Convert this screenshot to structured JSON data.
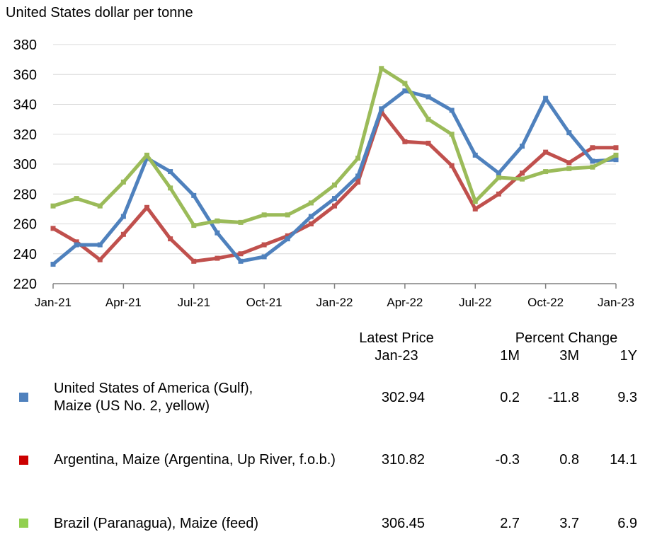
{
  "chart_data": {
    "type": "line",
    "ylabel": "United States dollar per tonne",
    "ylim": [
      220,
      380
    ],
    "yticks": [
      220,
      240,
      260,
      280,
      300,
      320,
      340,
      360,
      380
    ],
    "grid": true,
    "x": [
      "Jan-21",
      "Feb-21",
      "Mar-21",
      "Apr-21",
      "May-21",
      "Jun-21",
      "Jul-21",
      "Aug-21",
      "Sep-21",
      "Oct-21",
      "Nov-21",
      "Dec-21",
      "Jan-22",
      "Feb-22",
      "Mar-22",
      "Apr-22",
      "May-22",
      "Jun-22",
      "Jul-22",
      "Aug-22",
      "Sep-22",
      "Oct-22",
      "Nov-22",
      "Dec-22",
      "Jan-23"
    ],
    "xtick_labels": [
      "Jan-21",
      "Apr-21",
      "Jul-21",
      "Oct-21",
      "Jan-22",
      "Apr-22",
      "Jul-22",
      "Oct-22",
      "Jan-23"
    ],
    "xtick_indices": [
      0,
      3,
      6,
      9,
      12,
      15,
      18,
      21,
      24
    ],
    "series": [
      {
        "name": "United States of America (Gulf), Maize (US No. 2, yellow)",
        "color": "#4F81BD",
        "values": [
          233,
          246,
          246,
          265,
          304,
          295,
          279,
          254,
          235,
          238,
          250,
          265,
          277,
          292,
          337,
          349,
          345,
          336,
          306,
          294,
          312,
          344,
          321,
          302,
          303
        ]
      },
      {
        "name": "Argentina, Maize (Argentina, Up River, f.o.b.)",
        "color": "#C0504D",
        "values": [
          257,
          248,
          236,
          253,
          271,
          250,
          235,
          237,
          240,
          246,
          252,
          260,
          272,
          288,
          335,
          315,
          314,
          299,
          270,
          280,
          294,
          308,
          301,
          311,
          311
        ]
      },
      {
        "name": "Brazil (Paranagua), Maize (feed)",
        "color": "#9BBB59",
        "values": [
          272,
          277,
          272,
          288,
          306,
          284,
          259,
          262,
          261,
          266,
          266,
          274,
          286,
          304,
          364,
          354,
          330,
          320,
          275,
          291,
          290,
          295,
          297,
          298,
          306
        ]
      }
    ]
  },
  "table": {
    "header": {
      "latest_price": "Latest Price",
      "latest_date": "Jan-23",
      "percent_change": "Percent Change",
      "col_1m": "1M",
      "col_3m": "3M",
      "col_1y": "1Y"
    },
    "rows": [
      {
        "label_line1": "United States of America (Gulf),",
        "label_line2": "Maize (US No. 2, yellow)",
        "price": "302.94",
        "m1": "0.2",
        "m3": "-11.8",
        "y1": "9.3"
      },
      {
        "label_line1": "Argentina, Maize (Argentina, Up River, f.o.b.)",
        "price": "310.82",
        "m1": "-0.3",
        "m3": "0.8",
        "y1": "14.1"
      },
      {
        "label_line1": "Brazil (Paranagua), Maize (feed)",
        "price": "306.45",
        "m1": "2.7",
        "m3": "3.7",
        "y1": "6.9"
      }
    ]
  }
}
